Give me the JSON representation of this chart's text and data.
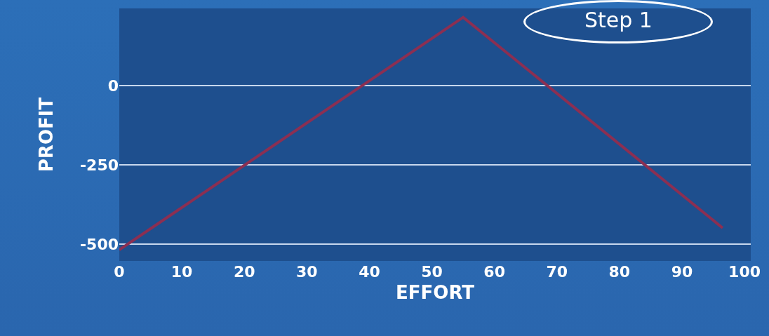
{
  "chart_data": {
    "type": "line",
    "xlabel": "EFFORT",
    "ylabel": "PROFIT",
    "annotations": [
      "Step 1"
    ],
    "x": [
      0,
      55,
      96.5
    ],
    "series": [
      {
        "color": "#8c2f52",
        "values": [
          -518,
          215,
          -449
        ]
      }
    ],
    "xlim": [
      0,
      101
    ],
    "xticks": [
      0,
      10,
      20,
      30,
      40,
      50,
      60,
      70,
      80,
      90,
      100
    ],
    "ylim": [
      -553,
      243
    ],
    "yticks": [
      -500,
      -250,
      0
    ],
    "grid": "y",
    "marker": "none",
    "line_style": "solid"
  }
}
